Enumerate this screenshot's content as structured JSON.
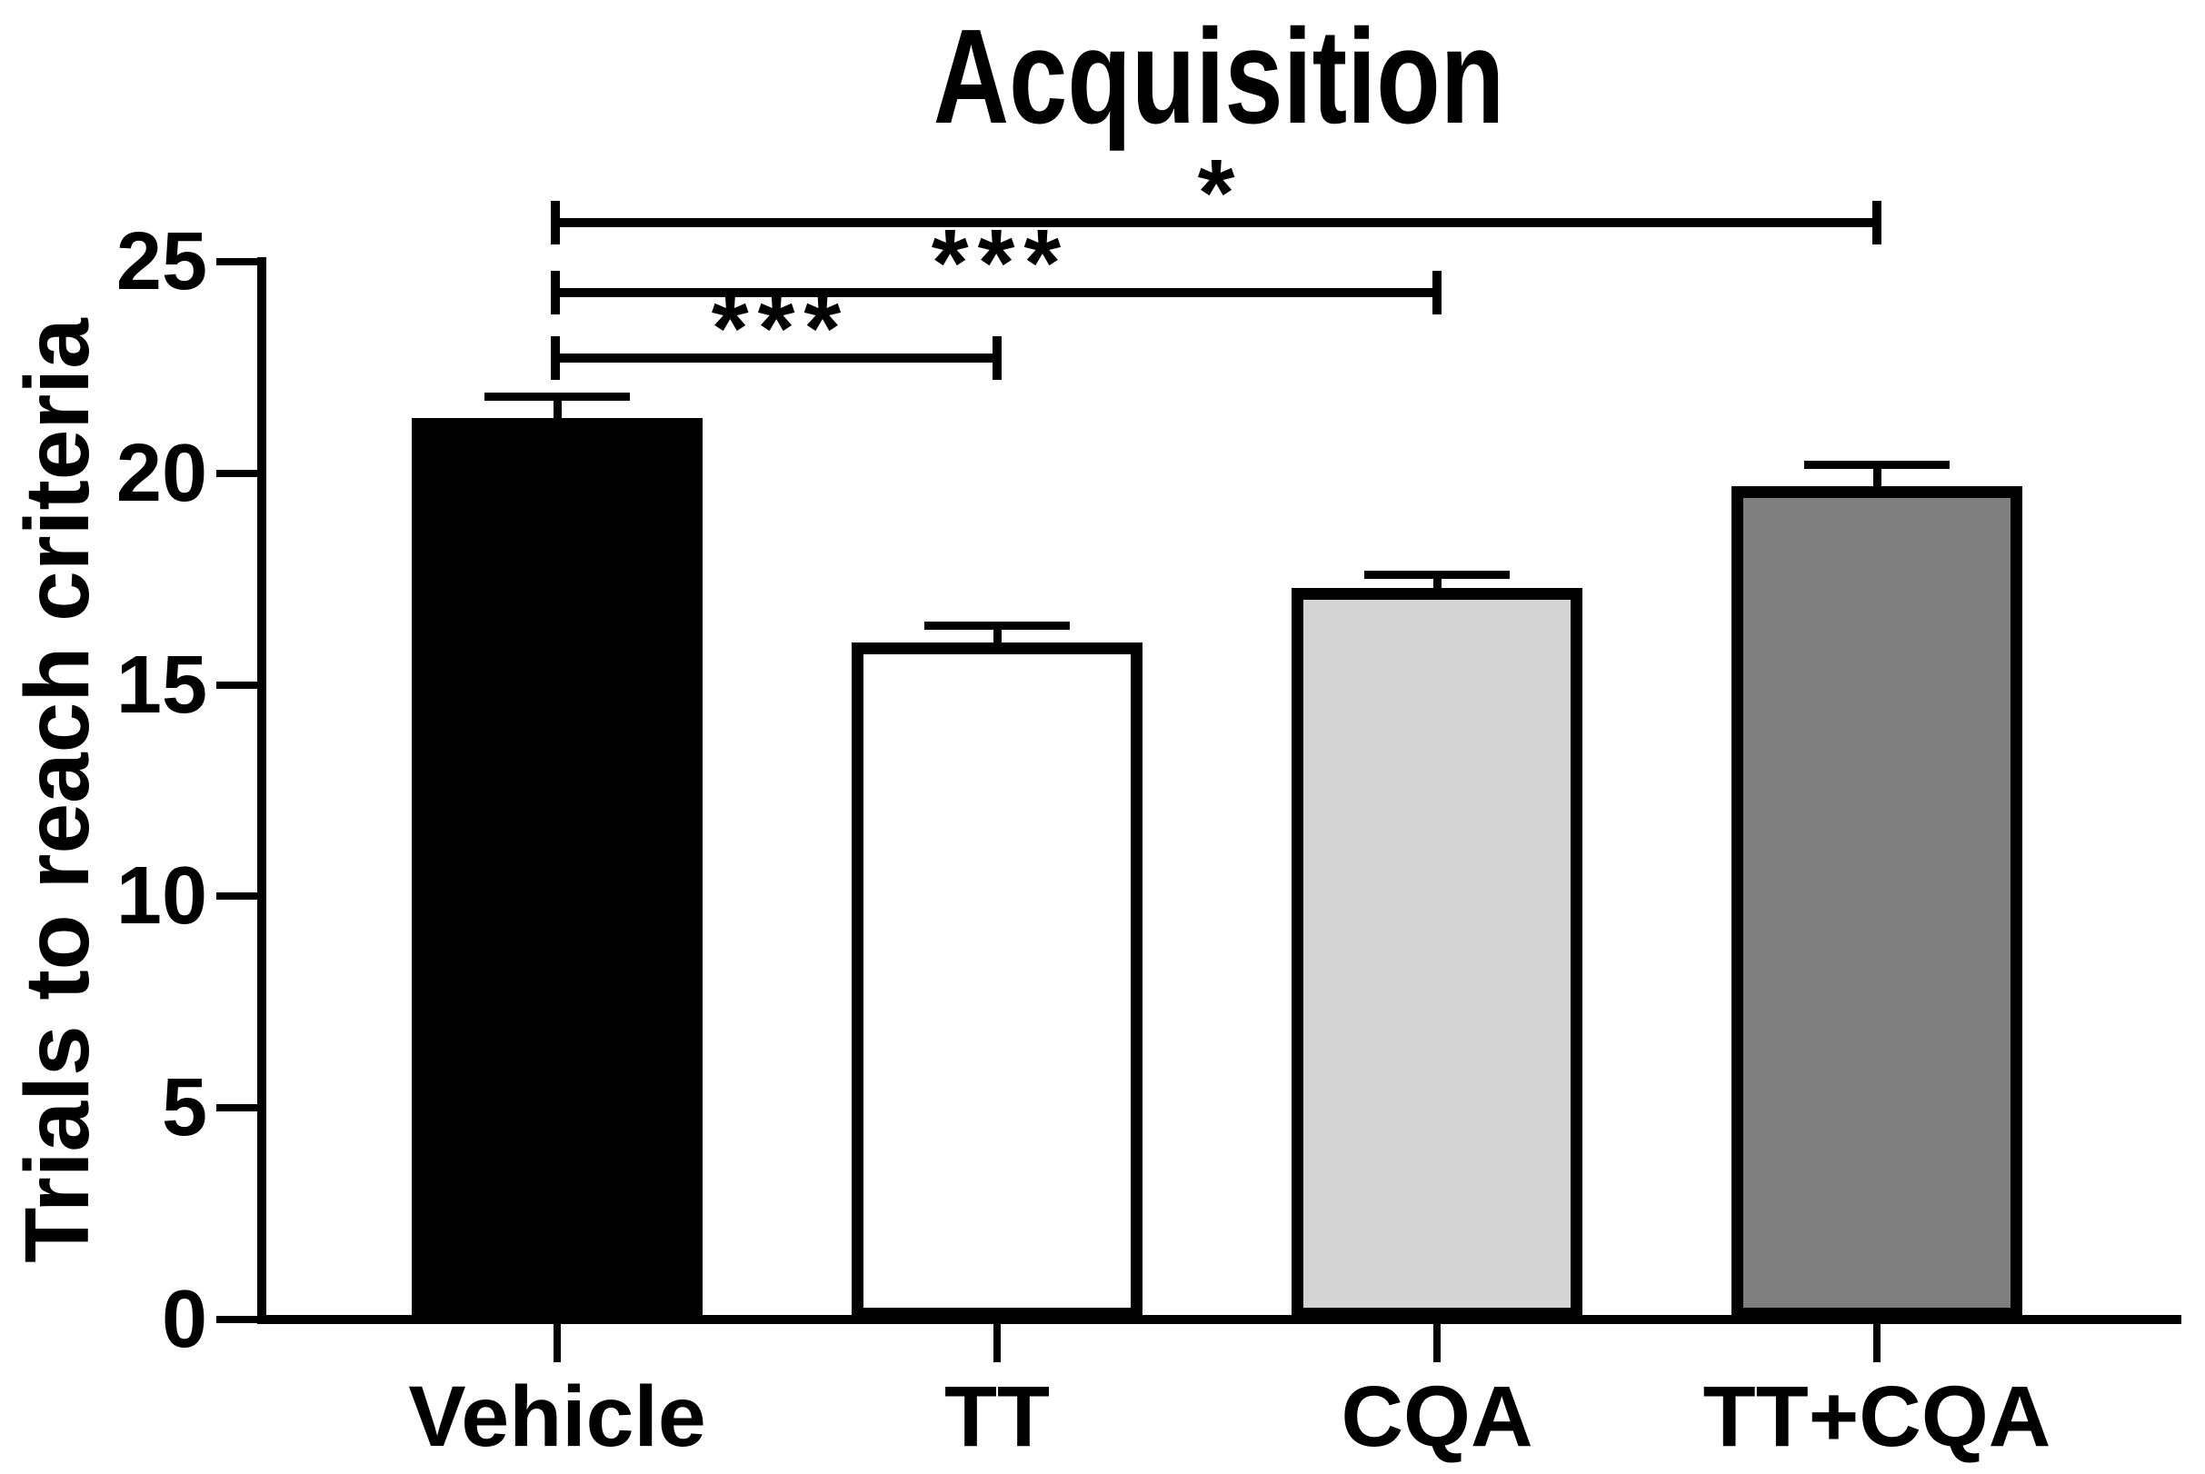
{
  "figure": {
    "title": "Acquisition",
    "background": "#ffffff",
    "ink_color": "#000000"
  },
  "chart_data": {
    "type": "bar",
    "title": "Acquisition",
    "xlabel": "",
    "ylabel": "Trials to reach criteria",
    "categories": [
      "Vehicle",
      "TT",
      "CQA",
      "TT+CQA"
    ],
    "values": [
      21.3,
      16.0,
      17.3,
      19.7
    ],
    "errors_sem_upper": [
      0.6,
      0.5,
      0.4,
      0.6
    ],
    "error_bar_style": "upper SEM whisker with cap",
    "bar_colors": [
      "#000000",
      "#ffffff",
      "#d4d4d4",
      "#7f7f7f"
    ],
    "bar_border_color": "#000000",
    "ylim": [
      0,
      25
    ],
    "yticks": [
      "0",
      "5",
      "10",
      "15",
      "20",
      "25"
    ],
    "grid": false,
    "legend": "none",
    "significance_brackets": [
      {
        "from": "Vehicle",
        "to": "TT+CQA",
        "label": "*"
      },
      {
        "from": "Vehicle",
        "to": "CQA",
        "label": "***"
      },
      {
        "from": "Vehicle",
        "to": "TT",
        "label": "***"
      }
    ]
  }
}
